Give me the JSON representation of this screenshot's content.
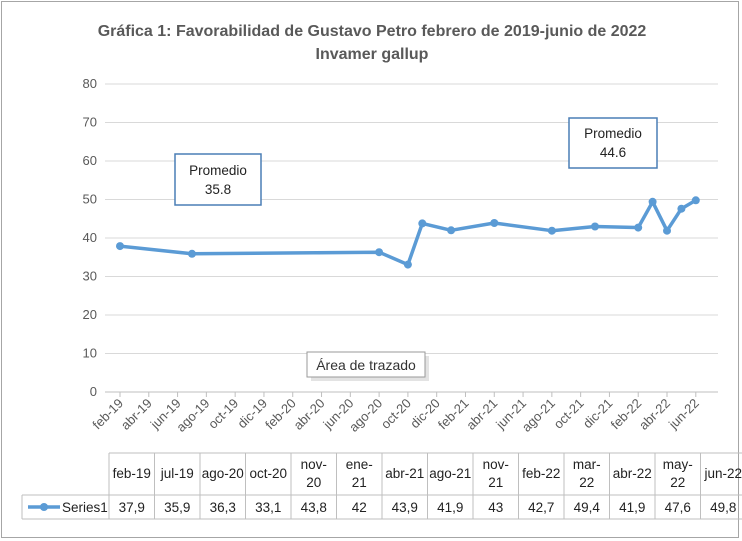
{
  "chart_data": {
    "type": "line",
    "title": "Gráfica 1: Favorabilidad de Gustavo Petro febrero de 2019-junio de 2022",
    "subtitle": "Invamer gallup",
    "ylim": [
      0,
      80
    ],
    "yticks": [
      "0",
      "10",
      "20",
      "30",
      "40",
      "50",
      "60",
      "70",
      "80"
    ],
    "xticks": [
      "feb-19",
      "abr-19",
      "jun-19",
      "ago-19",
      "oct-19",
      "dic-19",
      "feb-20",
      "abr-20",
      "jun-20",
      "ago-20",
      "oct-20",
      "dic-20",
      "feb-21",
      "abr-21",
      "jun-21",
      "ago-21",
      "oct-21",
      "dic-21",
      "feb-22",
      "abr-22",
      "jun-22"
    ],
    "grid": true,
    "series": [
      {
        "name": "Series1",
        "color": "#5b9bd5",
        "points": [
          {
            "date": "2019-02",
            "value": 37.9
          },
          {
            "date": "2019-07",
            "value": 35.9
          },
          {
            "date": "2020-08",
            "value": 36.3
          },
          {
            "date": "2020-10",
            "value": 33.1
          },
          {
            "date": "2020-11",
            "value": 43.8
          },
          {
            "date": "2021-01",
            "value": 42
          },
          {
            "date": "2021-04",
            "value": 43.9
          },
          {
            "date": "2021-08",
            "value": 41.9
          },
          {
            "date": "2021-11",
            "value": 43
          },
          {
            "date": "2022-02",
            "value": 42.7
          },
          {
            "date": "2022-03",
            "value": 49.4
          },
          {
            "date": "2022-04",
            "value": 41.9
          },
          {
            "date": "2022-05",
            "value": 47.6
          },
          {
            "date": "2022-06",
            "value": 49.8
          }
        ]
      }
    ],
    "table": {
      "header": [
        "feb-19",
        "jul-19",
        "ago-20",
        "oct-20",
        "nov-20",
        "ene-21",
        "abr-21",
        "ago-21",
        "nov-21",
        "feb-22",
        "mar-22",
        "abr-22",
        "may-22",
        "jun-22"
      ],
      "series_label": "Series1",
      "values": [
        "37,9",
        "35,9",
        "36,3",
        "33,1",
        "43,8",
        "42",
        "43,9",
        "41,9",
        "43",
        "42,7",
        "49,4",
        "41,9",
        "47,6",
        "49,8"
      ]
    },
    "annotations": [
      {
        "lines": [
          "Promedio",
          "35.8"
        ]
      },
      {
        "lines": [
          "Promedio",
          "44.6"
        ]
      }
    ],
    "tooltip": "Área de trazado"
  }
}
